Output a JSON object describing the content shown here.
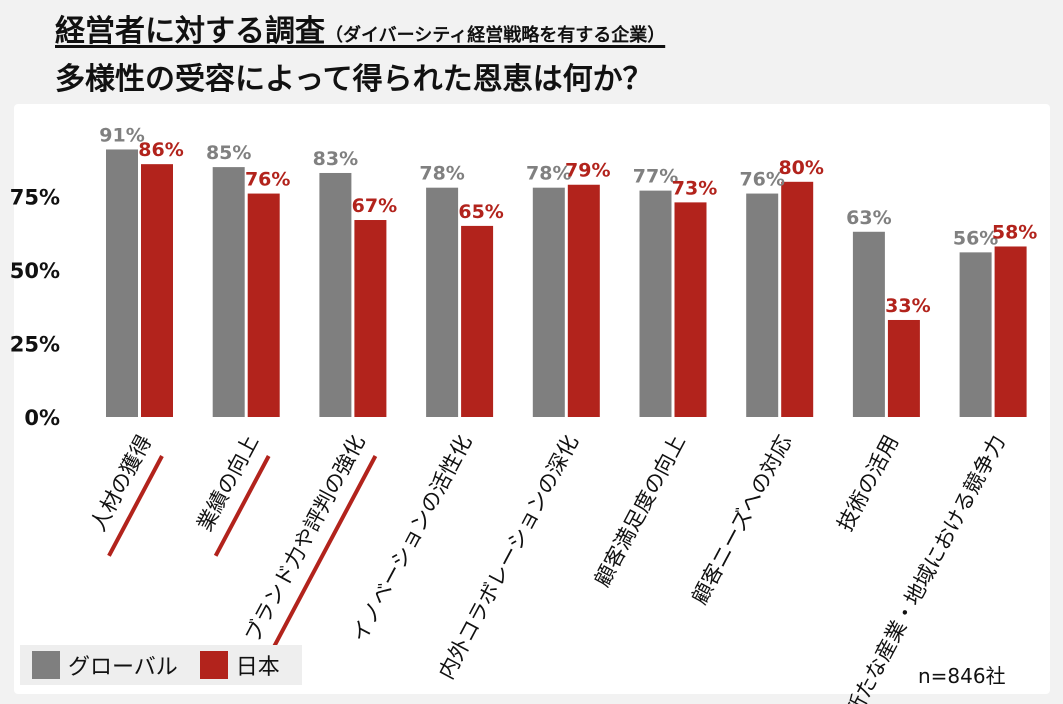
{
  "title": {
    "line1_main": "経営者に対する調査",
    "line1_sub": "（ダイバーシティ経営戦略を有する企業）",
    "line2": "多様性の受容によって得られた恩恵は何か？"
  },
  "note": "n=846社",
  "colors": {
    "global": "#7f7f7f",
    "japan": "#b2231c",
    "axis_text": "#111111",
    "label_global": "#808080",
    "underline": "#b2231c"
  },
  "chart_data": {
    "type": "bar",
    "categories": [
      "人材の獲得",
      "業績の向上",
      "ブランド力や評判の強化",
      "イノベーションの活性化",
      "内外コラボレーションの深化",
      "顧客満足度の向上",
      "顧客ニーズへの対応",
      "技術の活用",
      "新たな産業・地域における競争力"
    ],
    "series": [
      {
        "name": "グローバル",
        "values": [
          91,
          85,
          83,
          78,
          78,
          77,
          76,
          63,
          56
        ]
      },
      {
        "name": "日本",
        "values": [
          86,
          76,
          67,
          65,
          79,
          73,
          80,
          33,
          58
        ]
      }
    ],
    "data_labels": {
      "global": [
        "91%",
        "85%",
        "83%",
        "78%",
        "78%",
        "77%",
        "76%",
        "63%",
        "56%"
      ],
      "japan": [
        "86%",
        "76%",
        "67%",
        "65%",
        "79%",
        "73%",
        "80%",
        "33%",
        "58%"
      ]
    },
    "yticks": [
      "0%",
      "25%",
      "50%",
      "75%"
    ],
    "ytick_values": [
      0,
      25,
      50,
      75
    ],
    "ylim": [
      0,
      100
    ],
    "underlined_categories": [
      0,
      1,
      2
    ],
    "grid": false,
    "legend_position": "bottom-left"
  }
}
